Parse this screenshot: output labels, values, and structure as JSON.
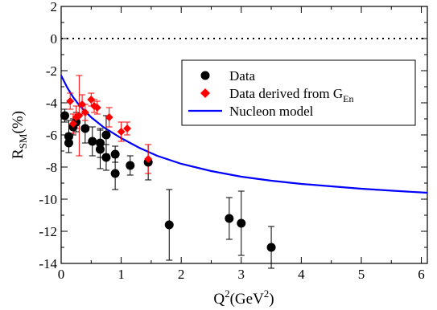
{
  "chart_data": {
    "type": "scatter",
    "xlabel": {
      "main": "Q",
      "sup": "2",
      "rest": "(GeV",
      "sup2": "2",
      "end": ")"
    },
    "ylabel": {
      "main": "R",
      "sub": "SM",
      "rest": "(%)"
    },
    "xlim": [
      0,
      6.1
    ],
    "ylim": [
      -14,
      2
    ],
    "xticks": [
      0,
      1,
      2,
      3,
      4,
      5,
      6
    ],
    "yticks": [
      -14,
      -12,
      -10,
      -8,
      -6,
      -4,
      -2,
      0,
      2
    ],
    "reference_line": {
      "y": 0,
      "style": "dotted"
    },
    "grid": false,
    "legend_position": "upper-right",
    "series": [
      {
        "name": "Data",
        "legend_label": "Data",
        "marker": "circle",
        "color": "#000000",
        "points": [
          {
            "x": 0.06,
            "y": -4.8,
            "err": 0.4
          },
          {
            "x": 0.127,
            "y": -6.1,
            "err": 1.0
          },
          {
            "x": 0.127,
            "y": -6.5,
            "err": 0.6
          },
          {
            "x": 0.2,
            "y": -5.5,
            "err": 0.5
          },
          {
            "x": 0.25,
            "y": -5.2,
            "err": 0.6
          },
          {
            "x": 0.4,
            "y": -5.6,
            "err": 0.9
          },
          {
            "x": 0.52,
            "y": -6.4,
            "err": 0.9
          },
          {
            "x": 0.65,
            "y": -6.5,
            "err": 0.9
          },
          {
            "x": 0.65,
            "y": -6.9,
            "err": 1.2
          },
          {
            "x": 0.75,
            "y": -6.0,
            "err": 1.2
          },
          {
            "x": 0.75,
            "y": -7.4,
            "err": 0.8
          },
          {
            "x": 0.9,
            "y": -7.2,
            "err": 0.5
          },
          {
            "x": 0.9,
            "y": -8.4,
            "err": 1.0
          },
          {
            "x": 1.15,
            "y": -7.9,
            "err": 0.6
          },
          {
            "x": 1.45,
            "y": -7.7,
            "err": 1.1
          },
          {
            "x": 1.8,
            "y": -11.6,
            "err": 2.2
          },
          {
            "x": 2.8,
            "y": -11.2,
            "err": 1.3
          },
          {
            "x": 3.0,
            "y": -11.5,
            "err": 2.0
          },
          {
            "x": 3.5,
            "y": -13.0,
            "err": 1.3
          }
        ]
      },
      {
        "name": "Data derived from G_En",
        "legend_label": {
          "main": "Data derived from G",
          "sub": "En"
        },
        "marker": "diamond",
        "color": "#ff0000",
        "points": [
          {
            "x": 0.15,
            "y": -3.9,
            "err": 0.5
          },
          {
            "x": 0.2,
            "y": -5.3,
            "err": 0.6
          },
          {
            "x": 0.25,
            "y": -4.9,
            "err": 0.7
          },
          {
            "x": 0.3,
            "y": -4.8,
            "err": 2.5
          },
          {
            "x": 0.35,
            "y": -4.1,
            "err": 0.6
          },
          {
            "x": 0.4,
            "y": -4.6,
            "err": 0.5
          },
          {
            "x": 0.5,
            "y": -3.8,
            "err": 0.4
          },
          {
            "x": 0.55,
            "y": -4.2,
            "err": 0.4
          },
          {
            "x": 0.6,
            "y": -4.3,
            "err": 0.4
          },
          {
            "x": 0.8,
            "y": -4.9,
            "err": 0.6
          },
          {
            "x": 1.0,
            "y": -5.8,
            "err": 0.6
          },
          {
            "x": 1.1,
            "y": -5.6,
            "err": 0.4
          },
          {
            "x": 1.45,
            "y": -7.5,
            "err": 0.9
          }
        ]
      },
      {
        "name": "Nucleon model",
        "legend_label": "Nucleon model",
        "type": "line",
        "color": "#0000ff",
        "points": [
          {
            "x": 0.0,
            "y": -2.3
          },
          {
            "x": 0.1,
            "y": -3.05
          },
          {
            "x": 0.2,
            "y": -3.65
          },
          {
            "x": 0.3,
            "y": -4.15
          },
          {
            "x": 0.5,
            "y": -4.9
          },
          {
            "x": 0.7,
            "y": -5.5
          },
          {
            "x": 1.0,
            "y": -6.2
          },
          {
            "x": 1.3,
            "y": -6.8
          },
          {
            "x": 1.6,
            "y": -7.3
          },
          {
            "x": 2.0,
            "y": -7.8
          },
          {
            "x": 2.5,
            "y": -8.25
          },
          {
            "x": 3.0,
            "y": -8.6
          },
          {
            "x": 3.5,
            "y": -8.85
          },
          {
            "x": 4.0,
            "y": -9.05
          },
          {
            "x": 4.5,
            "y": -9.2
          },
          {
            "x": 5.0,
            "y": -9.35
          },
          {
            "x": 5.5,
            "y": -9.47
          },
          {
            "x": 6.1,
            "y": -9.6
          }
        ]
      }
    ]
  }
}
